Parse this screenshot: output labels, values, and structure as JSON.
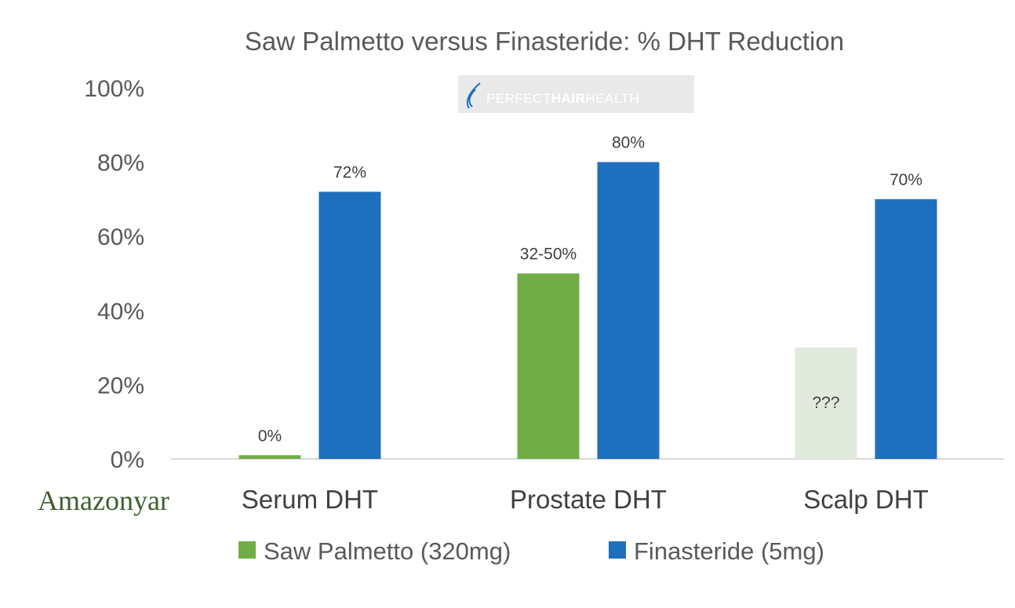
{
  "chart_data": {
    "type": "bar",
    "title": "Saw Palmetto versus Finasteride: % DHT Reduction",
    "categories": [
      "Serum DHT",
      "Prostate DHT",
      "Scalp DHT"
    ],
    "ylim": [
      0,
      100
    ],
    "yticks": [
      "0%",
      "20%",
      "40%",
      "60%",
      "80%",
      "100%"
    ],
    "grid": false,
    "legend_position": "bottom",
    "series": [
      {
        "name": "Saw Palmetto (320mg)",
        "color": "#70ad47",
        "values": [
          1,
          50,
          30
        ],
        "labels": [
          "0%",
          "32-50%",
          "???"
        ],
        "uncertain": [
          false,
          false,
          true
        ],
        "uncertain_color": "#e2e9dd"
      },
      {
        "name": "Finasteride (5mg)",
        "color": "#1f6fbf",
        "values": [
          72,
          80,
          70
        ],
        "labels": [
          "72%",
          "80%",
          "70%"
        ],
        "uncertain": [
          false,
          false,
          false
        ]
      }
    ]
  },
  "watermark": {
    "text_regular_1": "PERFECT",
    "text_bold": "HAIR",
    "text_regular_2": "HEALTH",
    "icon": "hair-strand-icon"
  },
  "brand": {
    "text": "Amazonyar",
    "color": "#3f5f2e"
  }
}
